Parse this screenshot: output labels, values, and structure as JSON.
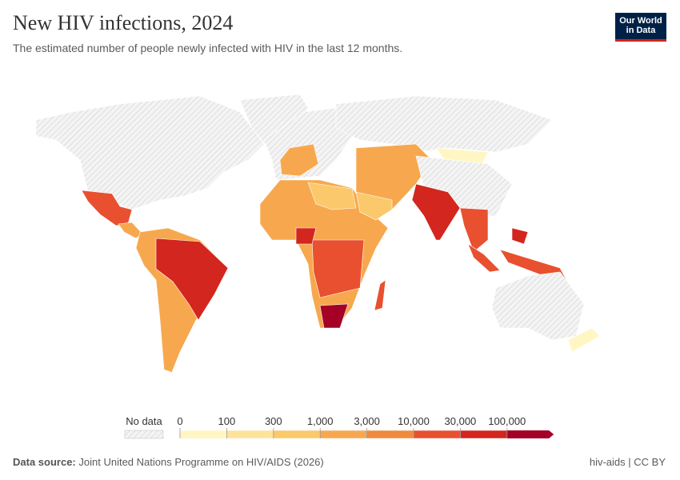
{
  "header": {
    "title": "New HIV infections, 2024",
    "subtitle": "The estimated number of people newly infected with HIV in the last 12 months.",
    "logo": [
      "Our World",
      "in Data"
    ]
  },
  "chart_data": {
    "type": "choropleth",
    "legend": {
      "no_data_label": "No data",
      "bins": [
        0,
        100,
        300,
        {
          "value": 1000,
          "label": "1,000"
        },
        {
          "value": 3000,
          "label": "3,000"
        },
        {
          "value": 10000,
          "label": "10,000"
        },
        {
          "value": 30000,
          "label": "30,000"
        },
        {
          "value": 100000,
          "label": "100,000"
        }
      ],
      "colors": [
        "#fff6c4",
        "#fde39a",
        "#fbc96b",
        "#f7a84e",
        "#f08a3c",
        "#e8502f",
        "#d3261e",
        "#a50026"
      ]
    }
  },
  "footer": {
    "source_label": "Data source:",
    "source": "Joint United Nations Programme on HIV/AIDS (2026)",
    "license": "hiv-aids | CC BY"
  }
}
